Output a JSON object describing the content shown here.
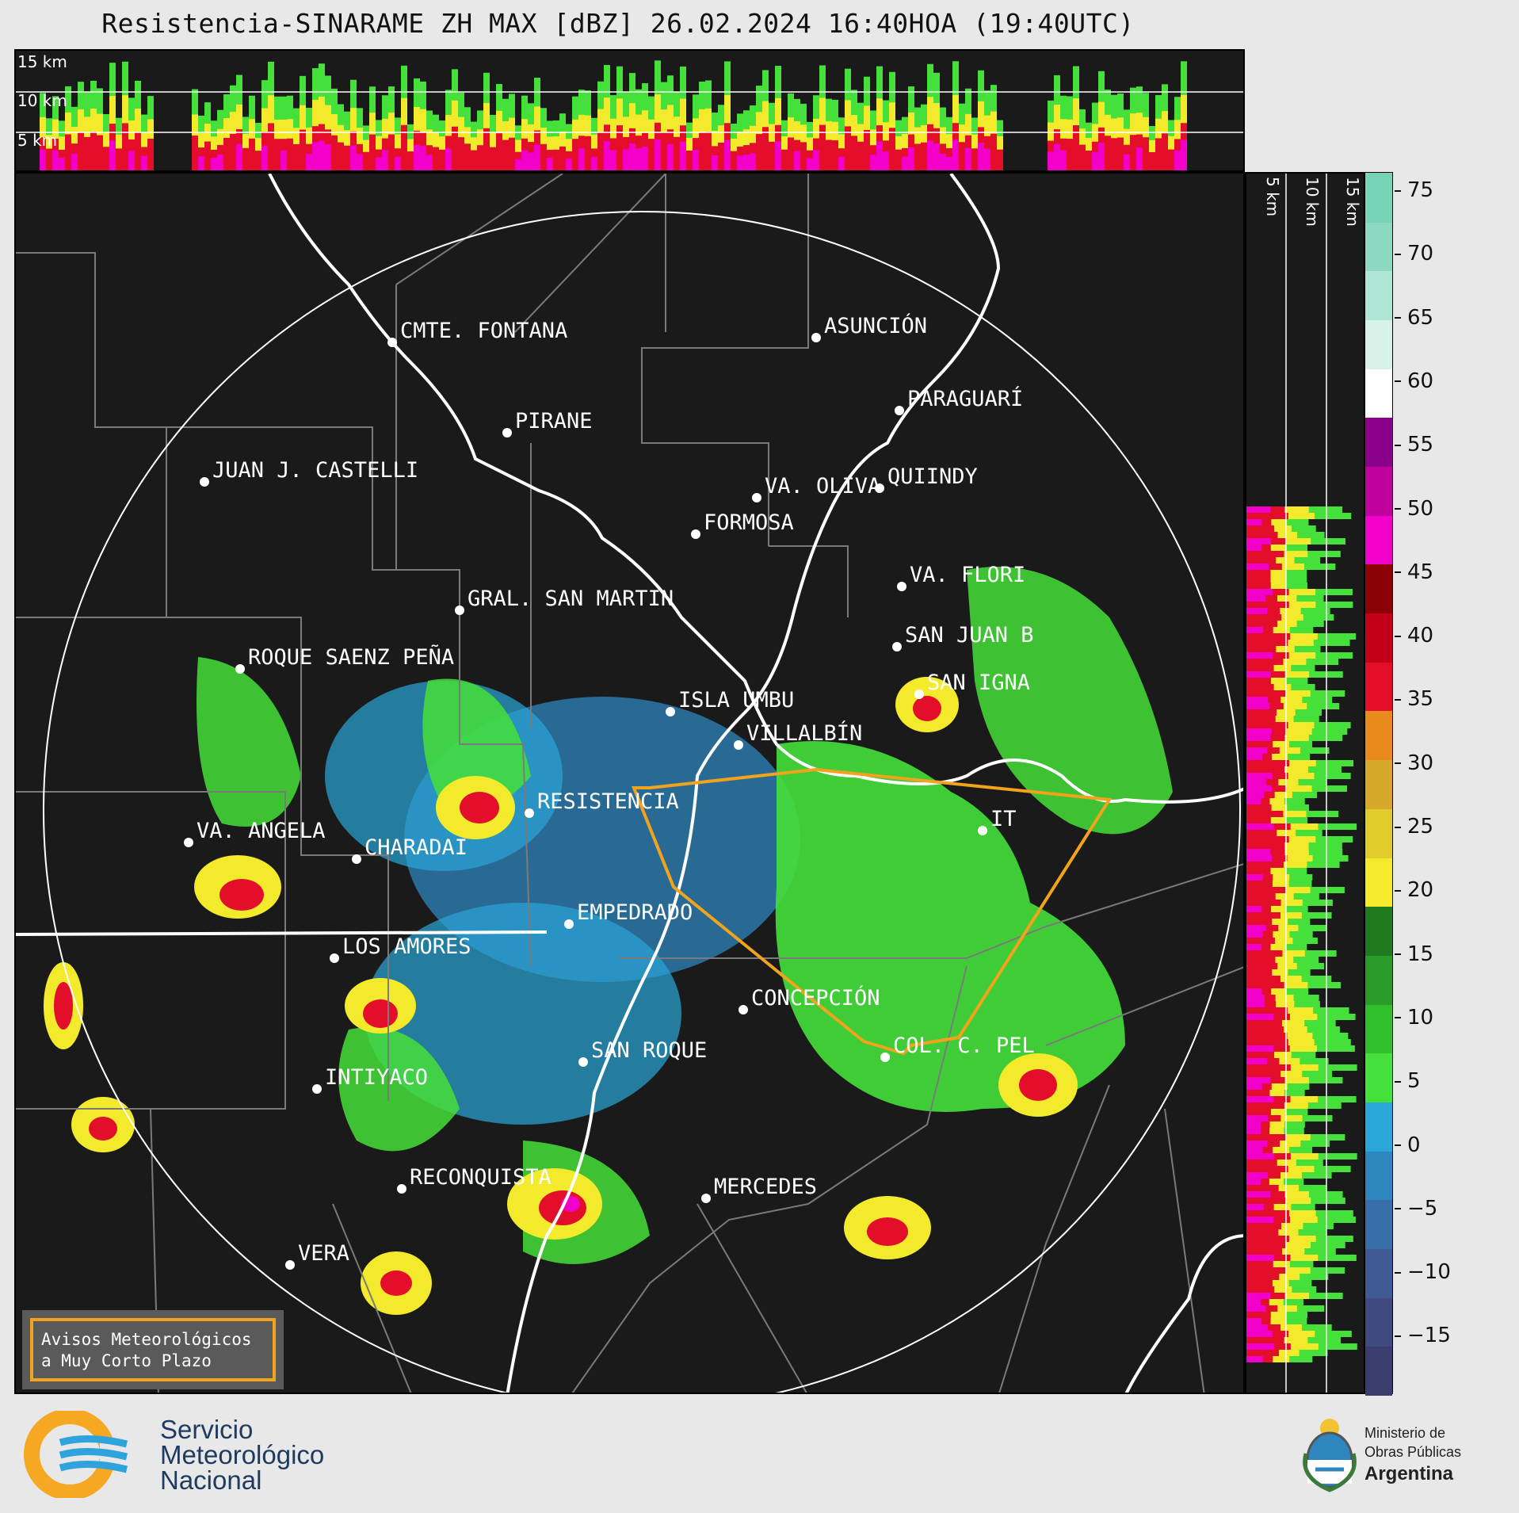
{
  "header": {
    "title": "Resistencia-SINARAME ZH MAX [dBZ] 26.02.2024 16:40HOA (19:40UTC)"
  },
  "top_panel": {
    "height_labels": [
      "15 km",
      "10 km",
      "5 km"
    ]
  },
  "side_panel": {
    "height_labels": [
      "5 km",
      "10 km",
      "15 km"
    ]
  },
  "colorbar": {
    "unit": "dBZ",
    "ticks": [
      "75",
      "70",
      "65",
      "60",
      "55",
      "50",
      "45",
      "40",
      "35",
      "30",
      "25",
      "20",
      "15",
      "10",
      "5",
      "0",
      "−5",
      "−10",
      "−15"
    ],
    "colors": [
      "#3b3d6e",
      "#3f4a80",
      "#3f5a94",
      "#3a6ea8",
      "#2f86bf",
      "#2aa6d8",
      "#45e03a",
      "#2fc02c",
      "#2a9a28",
      "#1f7a1f",
      "#f2ea2b",
      "#e0cc2a",
      "#d6a82a",
      "#e88a1c",
      "#e20e2a",
      "#c40018",
      "#8c0008",
      "#f000c8",
      "#c0009a",
      "#8a0088",
      "#ffffff",
      "#d8f2ea",
      "#b0e6d6",
      "#8cd8c0",
      "#78d4b8"
    ]
  },
  "cities": [
    {
      "name": "CMTE. FONTANA"
    },
    {
      "name": "ASUNCIÓN"
    },
    {
      "name": "PARAGUARÍ"
    },
    {
      "name": "PIRANE"
    },
    {
      "name": "JUAN J. CASTELLI"
    },
    {
      "name": "VA. OLIVA"
    },
    {
      "name": "QUIINDY"
    },
    {
      "name": "FORMOSA"
    },
    {
      "name": "VA. FLORI"
    },
    {
      "name": "GRAL. SAN MARTIN"
    },
    {
      "name": "SAN JUAN B"
    },
    {
      "name": "ROQUE SAENZ PEÑA"
    },
    {
      "name": "SAN IGNA"
    },
    {
      "name": "ISLA UMBU"
    },
    {
      "name": "VILLALBÍN"
    },
    {
      "name": "RESISTENCIA"
    },
    {
      "name": "VA. ANGELA"
    },
    {
      "name": "CHARADAI"
    },
    {
      "name": "IT"
    },
    {
      "name": "EMPEDRADO"
    },
    {
      "name": "LOS AMORES"
    },
    {
      "name": "CONCEPCIÓN"
    },
    {
      "name": "SAN ROQUE"
    },
    {
      "name": "COL. C. PEL"
    },
    {
      "name": "INTIYACO"
    },
    {
      "name": "RECONQUISTA"
    },
    {
      "name": "MERCEDES"
    },
    {
      "name": "VERA"
    }
  ],
  "aviso": {
    "line1": "Avisos Meteorológicos",
    "line2": "a Muy Corto Plazo",
    "color": "#f2a31c"
  },
  "footer": {
    "smn_line1": "Servicio",
    "smn_line2": "Meteorológico",
    "smn_line3": "Nacional",
    "min_line1": "Ministerio de",
    "min_line2": "Obras Públicas",
    "min_line3": "Argentina"
  }
}
